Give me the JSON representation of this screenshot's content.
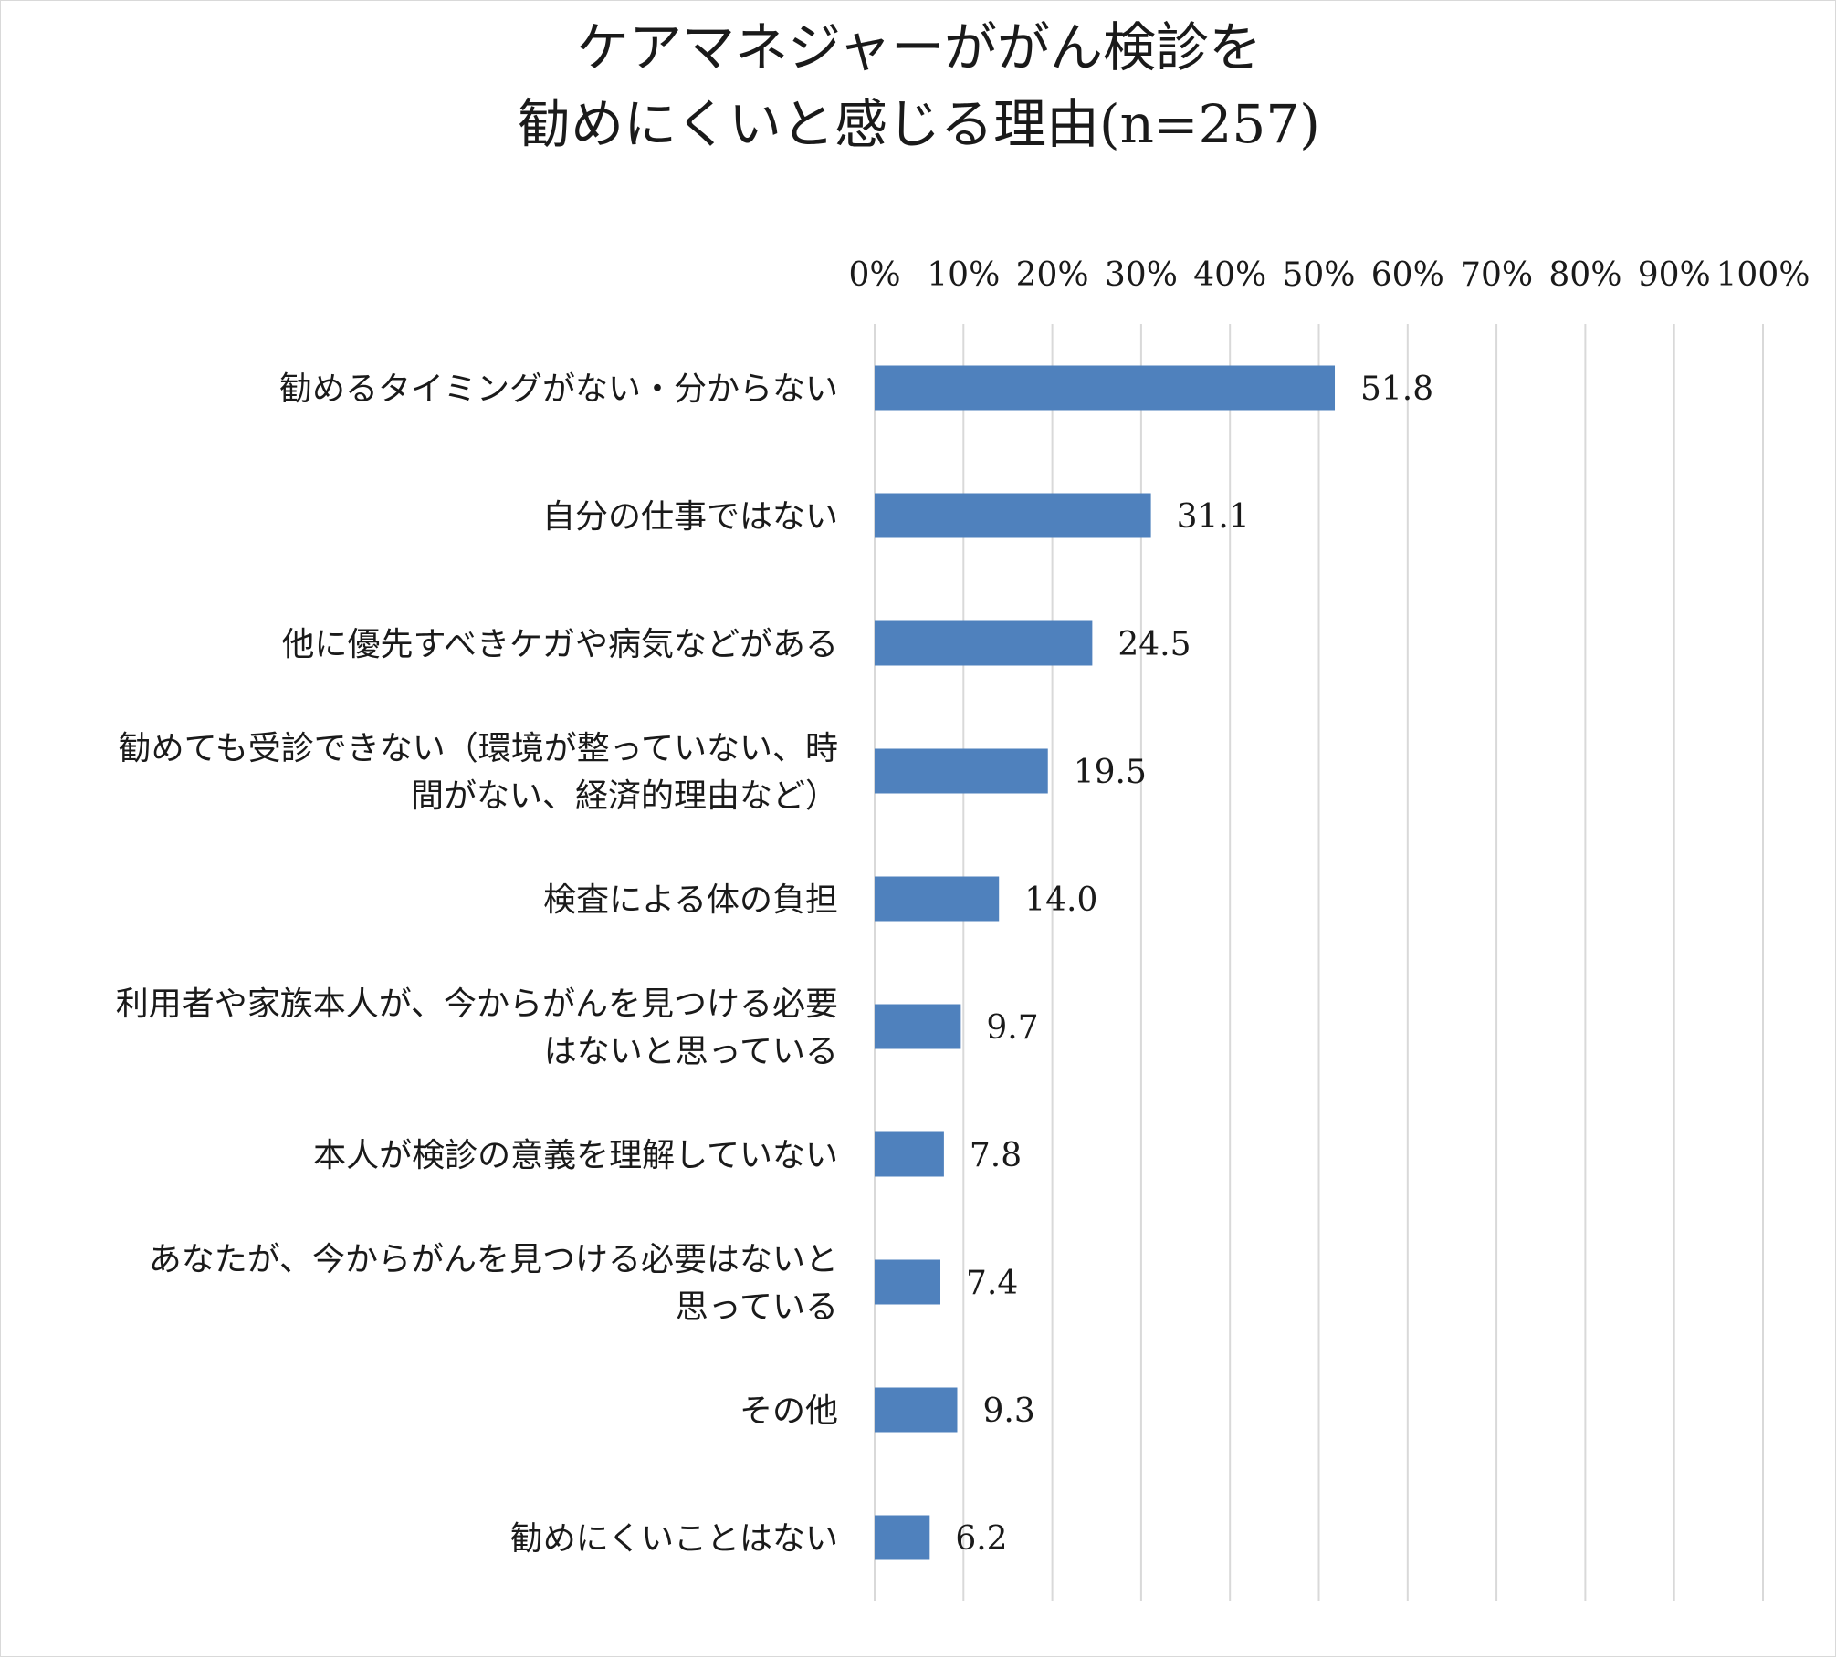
{
  "chart_data": {
    "type": "bar",
    "orientation": "horizontal",
    "title_lines": [
      "ケアマネジャーががん検診を",
      "勧めにくいと感じる理由(n=257)"
    ],
    "xlim": [
      0,
      100
    ],
    "x_ticks": [
      "0%",
      "10%",
      "20%",
      "30%",
      "40%",
      "50%",
      "60%",
      "70%",
      "80%",
      "90%",
      "100%"
    ],
    "grid": true,
    "categories": [
      [
        "勧めるタイミングがない・分からない"
      ],
      [
        "自分の仕事ではない"
      ],
      [
        "他に優先すべきケガや病気などがある"
      ],
      [
        "勧めても受診できない（環境が整っていない、時",
        "間がない、経済的理由など）"
      ],
      [
        "検査による体の負担"
      ],
      [
        "利用者や家族本人が、今からがんを見つける必要",
        "はないと思っている"
      ],
      [
        "本人が検診の意義を理解していない"
      ],
      [
        "あなたが、今からがんを見つける必要はないと",
        "思っている"
      ],
      [
        "その他"
      ],
      [
        "勧めにくいことはない"
      ]
    ],
    "values": [
      51.8,
      31.1,
      24.5,
      19.5,
      14.0,
      9.7,
      7.8,
      7.4,
      9.3,
      6.2
    ],
    "value_labels": [
      "51.8",
      "31.1",
      "24.5",
      "19.5",
      "14.0",
      "9.7",
      "7.8",
      "7.4",
      "9.3",
      "6.2"
    ],
    "colors": {
      "bar": "#4f81bd",
      "grid": "#d9d9d9",
      "text": "#1a1a1a"
    }
  }
}
